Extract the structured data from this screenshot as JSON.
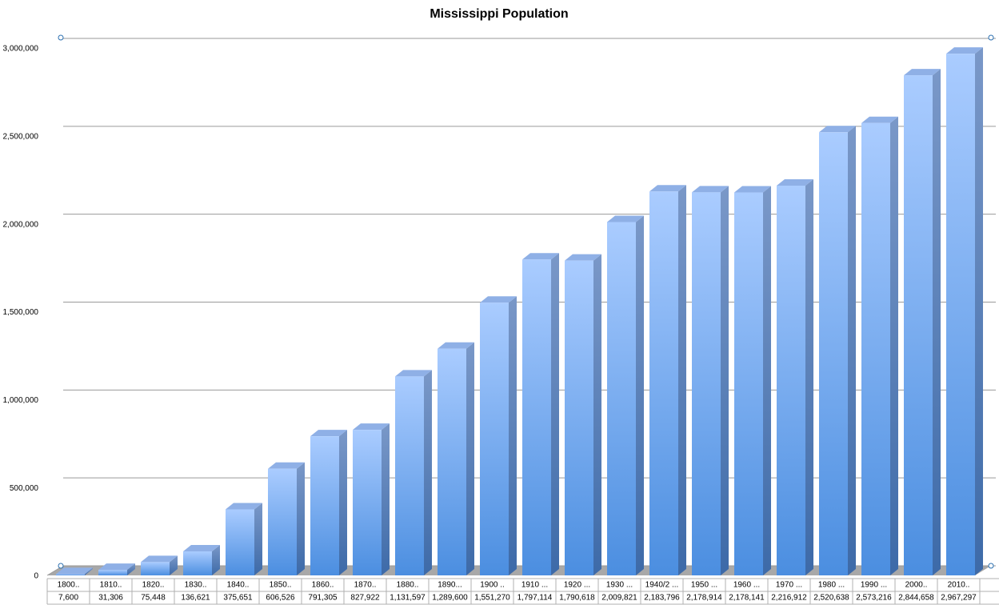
{
  "chart_data": {
    "type": "bar",
    "title": "Mississippi Population",
    "categories": [
      "1800..",
      "1810..",
      "1820..",
      "1830..",
      "1840..",
      "1850..",
      "1860..",
      "1870..",
      "1880..",
      "1890...",
      "1900 ..",
      "1910 ...",
      "1920 ...",
      "1930 ...",
      "1940/2 ...",
      "1950 ...",
      "1960 ...",
      "1970 ...",
      "1980 ...",
      "1990 ...",
      "2000..",
      "2010.."
    ],
    "values": [
      7600,
      31306,
      75448,
      136621,
      375651,
      606526,
      791305,
      827922,
      1131597,
      1289600,
      1551270,
      1797114,
      1790618,
      2009821,
      2183796,
      2178914,
      2178141,
      2216912,
      2520638,
      2573216,
      2844658,
      2967297
    ],
    "value_labels": [
      "7,600",
      "31,306",
      "75,448",
      "136,621",
      "375,651",
      "606,526",
      "791,305",
      "827,922",
      "1,131,597",
      "1,289,600",
      "1,551,270",
      "1,797,114",
      "1,790,618",
      "2,009,821",
      "2,183,796",
      "2,178,914",
      "2,178,141",
      "2,216,912",
      "2,520,638",
      "2,573,216",
      "2,844,658",
      "2,967,297"
    ],
    "color": "#6aa4ec",
    "ylim": [
      0,
      3000000
    ],
    "yticks": [
      0,
      {
        "value": 500000,
        "label": "500,000"
      },
      {
        "value": 1000000,
        "label": "1,000,000"
      },
      {
        "value": 1500000,
        "label": "1,500,000"
      },
      {
        "value": 2000000,
        "label": "2,000,000"
      },
      {
        "value": 2500000,
        "label": "2,500,000"
      },
      {
        "value": 3000000,
        "label": "3,000,000"
      }
    ],
    "grid": true
  }
}
